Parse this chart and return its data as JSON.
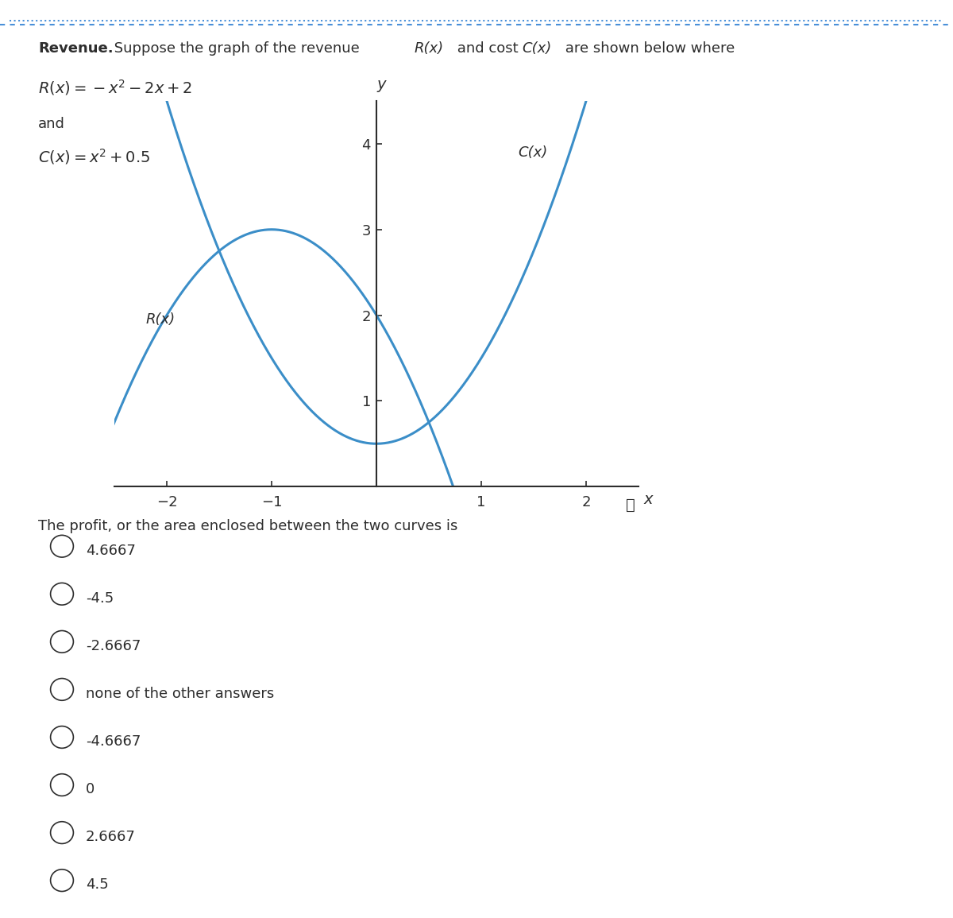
{
  "title_bold": "Revenue.",
  "title_normal": " Suppose the graph of the revenue ",
  "title_italic_R": "R(x)",
  "title_after_R": " and cost ",
  "title_italic_C": "C(x)",
  "title_end": " are shown below where",
  "eq1_prefix": "R(x) = −x²−2x+2",
  "eq2_prefix": "C(x) = x² + 0.5",
  "and_text": "and",
  "curve_color": "#3B8EC8",
  "axis_color": "#2d2d2d",
  "text_color": "#2d2d2d",
  "background_color": "#ffffff",
  "border_color": "#4a90d9",
  "x_min": -2.5,
  "x_max": 2.5,
  "y_min": 0.0,
  "y_max": 4.5,
  "x_ticks": [
    -2,
    -1,
    1,
    2
  ],
  "y_ticks": [
    1,
    2,
    3,
    4
  ],
  "question_text": "The profit, or the area enclosed between the two curves is",
  "options": [
    "4.6667",
    "-4.5",
    "-2.6667",
    "none of the other answers",
    "-4.6667",
    "0",
    "2.6667",
    "4.5"
  ]
}
